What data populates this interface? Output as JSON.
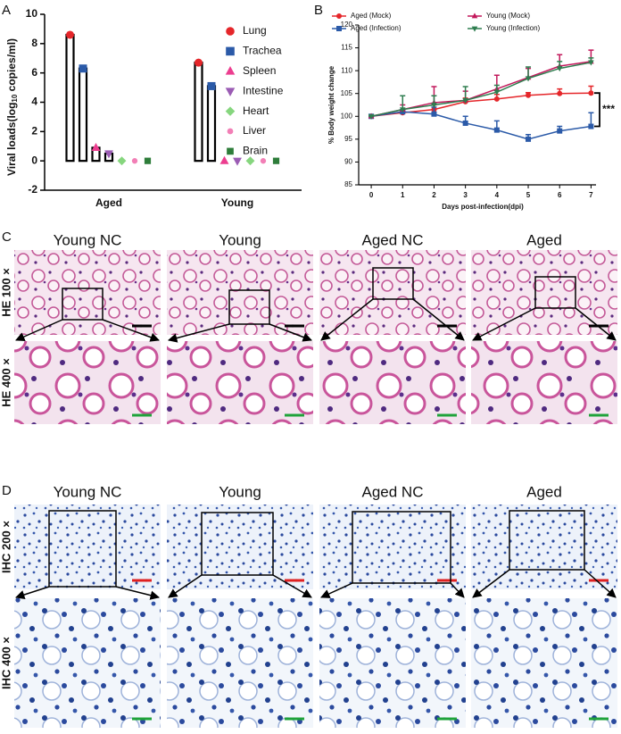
{
  "chart_data": [
    {
      "type": "bar",
      "panel": "A",
      "ylabel": {
        "text": "Viral loads(log",
        "sub": "10",
        "rest": " copies/ml)"
      },
      "categories": [
        "Aged",
        "Young"
      ],
      "series": [
        {
          "name": "Lung",
          "color": "#e5262a",
          "marker": "circle",
          "values": [
            8.6,
            6.7
          ]
        },
        {
          "name": "Trachea",
          "color": "#2b5aa8",
          "marker": "square",
          "values": [
            6.3,
            5.1
          ]
        },
        {
          "name": "Spleen",
          "color": "#ec3d8f",
          "marker": "triangle-up",
          "values": [
            0.9,
            0
          ]
        },
        {
          "name": "Intestine",
          "color": "#9b5cb4",
          "marker": "triangle-down",
          "values": [
            0.5,
            0
          ]
        },
        {
          "name": "Heart",
          "color": "#86d67e",
          "marker": "diamond",
          "values": [
            0,
            0
          ]
        },
        {
          "name": "Liver",
          "color": "#f27fb6",
          "marker": "small-circle",
          "values": [
            0,
            0
          ]
        },
        {
          "name": "Brain",
          "color": "#2e7d3a",
          "marker": "small-square",
          "values": [
            0,
            0
          ]
        }
      ],
      "ylim": [
        -2,
        10
      ],
      "yticks": [
        -2,
        0,
        2,
        4,
        6,
        8,
        10
      ]
    },
    {
      "type": "line",
      "panel": "B",
      "xlabel": "Days post-infection(dpi)",
      "ylabel": "% Body weight change",
      "x": [
        0,
        1,
        2,
        3,
        4,
        5,
        6,
        7
      ],
      "series": [
        {
          "name": "Aged (Mock)",
          "color": "#e5262a",
          "marker": "circle",
          "values": [
            100,
            100.8,
            101.5,
            103.2,
            103.8,
            104.6,
            105,
            105.1
          ],
          "errors": [
            0,
            0.5,
            1,
            0.8,
            1,
            0.6,
            1,
            1.5
          ]
        },
        {
          "name": "Aged (Infection)",
          "color": "#2b5aa8",
          "marker": "square",
          "values": [
            100,
            101,
            100.5,
            98.5,
            97,
            95,
            96.8,
            97.8
          ],
          "errors": [
            0,
            0.5,
            1.5,
            1.5,
            2,
            1,
            1,
            3
          ]
        },
        {
          "name": "Young (Mock)",
          "color": "#c2185b",
          "marker": "triangle-up",
          "values": [
            100,
            101.5,
            103,
            103.5,
            106,
            108.5,
            111,
            112
          ],
          "errors": [
            0,
            1,
            3.5,
            2,
            3,
            2,
            2.5,
            2.5
          ]
        },
        {
          "name": "Young (Infection)",
          "color": "#2e7d4f",
          "marker": "triangle-down",
          "values": [
            100,
            101.5,
            102.5,
            103.5,
            105.3,
            108.3,
            110.5,
            111.8
          ],
          "errors": [
            0,
            3,
            2,
            3,
            1.5,
            2.5,
            1.5,
            1
          ]
        }
      ],
      "xlim": [
        -0.4,
        7.5
      ],
      "xticks": [
        0,
        1,
        2,
        3,
        4,
        5,
        6,
        7
      ],
      "ylim": [
        85,
        120
      ],
      "yticks": [
        85,
        90,
        95,
        100,
        105,
        110,
        115,
        120
      ],
      "annotation": "***"
    }
  ],
  "histology": [
    {
      "label": "C",
      "columns": [
        "Young NC",
        "Young",
        "Aged NC",
        "Aged"
      ],
      "rows": [
        "HE 100 ×",
        "HE 400 ×"
      ]
    },
    {
      "label": "D",
      "columns": [
        "Young NC",
        "Young",
        "Aged NC",
        "Aged"
      ],
      "rows": [
        "IHC 200 ×",
        "IHC 400 ×"
      ]
    }
  ]
}
